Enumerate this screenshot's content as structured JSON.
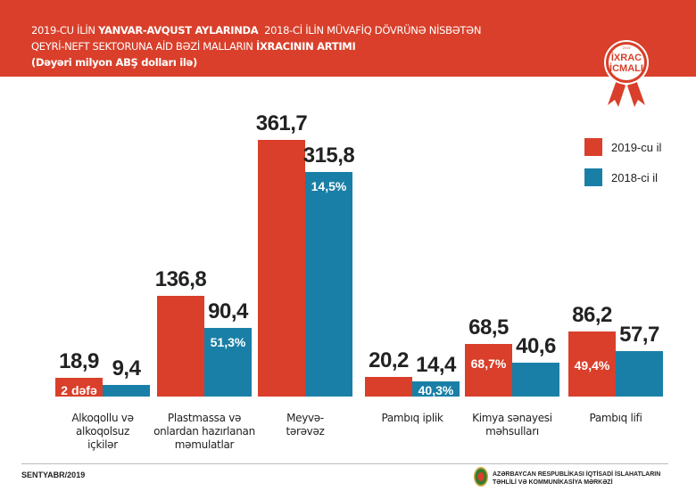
{
  "header": {
    "line1_a": "2019-CU İLİN ",
    "line1_b": "YANVAR-AVQUST AYLARINDA",
    "line1_c": "  2018-Cİ İLİN MÜVAFİQ DÖVRÜNƏ NİSBƏTƏN",
    "line2_a": "QEYRİ-NEFT SEKTORUNA AİD BƏZİ MALLARIN ",
    "line2_b": "İXRACININ ARTIMI",
    "line3": "(Dəyəri milyon ABŞ dolları ilə)"
  },
  "badge": {
    "year": "2019",
    "line1": "İXRAC",
    "line2": "İCMALI",
    "month": "SENTYABR"
  },
  "chart_data": {
    "type": "bar",
    "categories": [
      "Alkoqollu və alkoqolsuz içkilər",
      "Plastmassa və onlardan hazırlanan məmulatlar",
      "Meyvə-tərəvəz",
      "Pambıq iplik",
      "Kimya sənayesi məhsulları",
      "Pambıq lifi"
    ],
    "category_lines": [
      [
        "Alkoqollu və",
        "alkoqolsuz",
        "içkilər"
      ],
      [
        "Plastmassa və",
        "onlardan hazırlanan",
        "məmulatlar"
      ],
      [
        "Meyvə-",
        "tərəvəz"
      ],
      [
        "Pambıq iplik"
      ],
      [
        "Kimya sənayesi",
        "məhsulları"
      ],
      [
        "Pambıq lifi"
      ]
    ],
    "series": [
      {
        "name": "2019-cu il",
        "values": [
          18.9,
          136.8,
          361.7,
          20.2,
          68.5,
          86.2
        ],
        "labels": [
          "18,9",
          "136,8",
          "361,7",
          "20,2",
          "68,5",
          "86,2"
        ],
        "color": "#d93f2a"
      },
      {
        "name": "2018-ci il",
        "values": [
          9.4,
          90.4,
          315.8,
          14.4,
          40.6,
          57.7
        ],
        "labels": [
          "9,4",
          "90,4",
          "315,8",
          "14,4",
          "40,6",
          "57,7"
        ],
        "color": "#1a7fa6"
      }
    ],
    "growth_labels": [
      "2 dəfə",
      "51,3%",
      "14,5%",
      "40,3%",
      "68,7%",
      "49,4%"
    ],
    "legend_position": "top-right",
    "grid": false
  },
  "footer": {
    "date": "SENTYABR/2019",
    "org_line1": "AZƏRBAYCAN RESPUBLİKASI İQTİSADİ İSLAHATLARIN",
    "org_line2": "TƏHLİLİ VƏ KOMMUNİKASİYA MƏRKƏZİ"
  }
}
